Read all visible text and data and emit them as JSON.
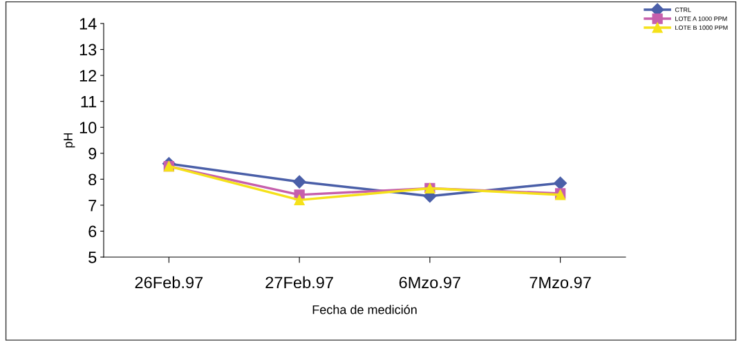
{
  "chart_data": {
    "type": "line",
    "xlabel": "Fecha de medición",
    "ylabel": "pH",
    "categories": [
      "26Feb.97",
      "27Feb.97",
      "6Mzo.97",
      "7Mzo.97"
    ],
    "series": [
      {
        "name": "CTRL",
        "color": "#4a5fa8",
        "marker": "diamond",
        "values": [
          8.6,
          7.9,
          7.35,
          7.85
        ]
      },
      {
        "name": "LOTE A 1000 PPM",
        "color": "#c65fac",
        "marker": "square",
        "values": [
          8.5,
          7.4,
          7.65,
          7.45
        ]
      },
      {
        "name": "LOTE B 1000 PPM",
        "color": "#f5e11a",
        "marker": "triangle",
        "values": [
          8.5,
          7.2,
          7.65,
          7.4
        ]
      }
    ],
    "ylim": [
      5,
      14
    ],
    "yticks": [
      5,
      6,
      7,
      8,
      9,
      10,
      11,
      12,
      13,
      14
    ],
    "grid": false,
    "legend": "top right"
  }
}
